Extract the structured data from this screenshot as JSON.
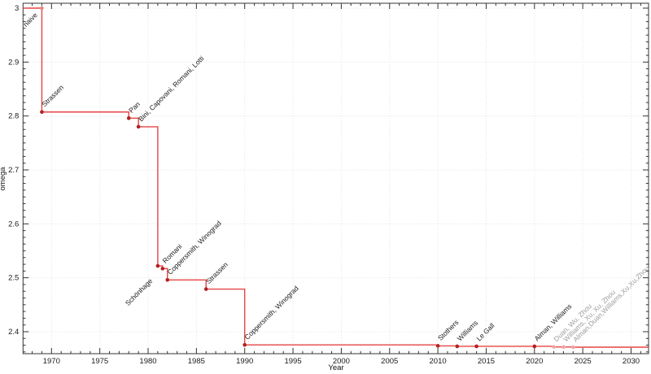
{
  "chart_data": {
    "type": "line",
    "subtype": "step-function",
    "title": "",
    "xlabel": "Year",
    "ylabel": "omega",
    "legend": "none",
    "grid": true,
    "x_ticks_major": [
      1970,
      1975,
      1980,
      1985,
      1990,
      1995,
      2000,
      2005,
      2010,
      2015,
      2020,
      2025,
      2030
    ],
    "y_ticks_major": [
      3,
      2.9,
      2.8,
      2.7,
      2.6,
      2.5,
      2.4
    ],
    "x_range": [
      1967.05,
      2031.8
    ],
    "y_range": [
      2.359,
      3.009
    ],
    "points": [
      {
        "year": 1969,
        "omega": 3.0,
        "label": "naive",
        "style": "light"
      },
      {
        "year": 1969,
        "omega": 2.8074,
        "label": "Strassen",
        "style": "solid"
      },
      {
        "year": 1978,
        "omega": 2.796,
        "label": "Pan",
        "style": "solid"
      },
      {
        "year": 1979,
        "omega": 2.78,
        "label": "Bini, Capovani, Romani, Lotti",
        "style": "solid"
      },
      {
        "year": 1981,
        "omega": 2.522,
        "label": "Schönhage",
        "style": "solid"
      },
      {
        "year": 1981.5,
        "omega": 2.517,
        "label": "Romani",
        "style": "solid"
      },
      {
        "year": 1982,
        "omega": 2.496,
        "label": "Coppersmith, Winograd",
        "style": "solid"
      },
      {
        "year": 1986,
        "omega": 2.479,
        "label": "Strassen",
        "style": "solid"
      },
      {
        "year": 1990,
        "omega": 2.3755,
        "label": "Coppersmith, Winograd",
        "style": "solid"
      },
      {
        "year": 2010,
        "omega": 2.3737,
        "label": "Stothers",
        "style": "solid"
      },
      {
        "year": 2012,
        "omega": 2.3729,
        "label": "Williams",
        "style": "solid"
      },
      {
        "year": 2014,
        "omega": 2.3728639,
        "label": "Le Gall",
        "style": "solid"
      },
      {
        "year": 2020,
        "omega": 2.3728596,
        "label": "Alman, Williams",
        "style": "solid"
      },
      {
        "year": 2022,
        "omega": 2.371866,
        "label": "Duan, Wu, Zhou",
        "style": "faded"
      },
      {
        "year": 2023,
        "omega": 2.371552,
        "label": "Williams, Xu, Xu, Zhou",
        "style": "faded"
      },
      {
        "year": 2024,
        "omega": 2.371339,
        "label": "Alman,Duan,Williams,Xu,Xu,Zhou",
        "style": "faded"
      }
    ],
    "colors": {
      "line": "#e64545",
      "point": "#b32020",
      "light_point": "#ea8585",
      "faded_point": "#f2a6a6",
      "label": "#1a1a1a",
      "faded_label": "#9b9b9b",
      "grid": "#e4e4e4",
      "border": "#333333",
      "tick": "#333333",
      "tick_label": "#1a1a1a"
    }
  }
}
